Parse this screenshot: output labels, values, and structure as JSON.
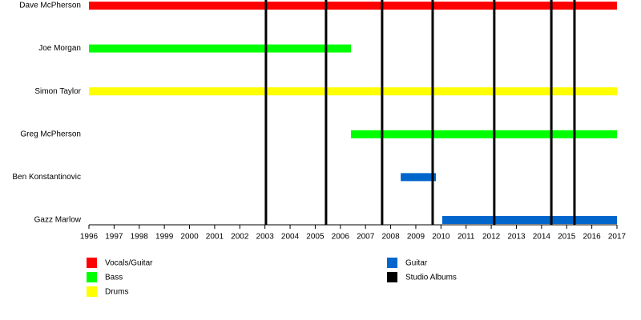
{
  "chart_data": {
    "type": "timeline",
    "xlim": [
      1996,
      2017
    ],
    "xticks": [
      1996,
      1997,
      1998,
      1999,
      2000,
      2001,
      2002,
      2003,
      2004,
      2005,
      2006,
      2007,
      2008,
      2009,
      2010,
      2011,
      2012,
      2013,
      2014,
      2015,
      2016,
      2017
    ],
    "roles": [
      {
        "name": "Vocals/Guitar",
        "color": "#ff0000"
      },
      {
        "name": "Bass",
        "color": "#00ff00"
      },
      {
        "name": "Drums",
        "color": "#ffff00"
      },
      {
        "name": "Guitar",
        "color": "#0066cc"
      }
    ],
    "members": [
      {
        "name": "Dave McPherson",
        "periods": [
          {
            "role": "Vocals/Guitar",
            "start": 1996,
            "end": 2017
          }
        ]
      },
      {
        "name": "Joe Morgan",
        "periods": [
          {
            "role": "Bass",
            "start": 1996,
            "end": 2006.42
          }
        ]
      },
      {
        "name": "Simon Taylor",
        "periods": [
          {
            "role": "Drums",
            "start": 1996,
            "end": 2017
          }
        ]
      },
      {
        "name": "Greg McPherson",
        "periods": [
          {
            "role": "Bass",
            "start": 2006.42,
            "end": 2017
          }
        ]
      },
      {
        "name": "Ben Konstantinovic",
        "periods": [
          {
            "role": "Guitar",
            "start": 2008.4,
            "end": 2009.8
          }
        ]
      },
      {
        "name": "Gazz Marlow",
        "periods": [
          {
            "role": "Guitar",
            "start": 2010.05,
            "end": 2017
          }
        ]
      }
    ],
    "albums": {
      "name": "Studio Albums",
      "color": "#000000",
      "values": [
        2003.04,
        2005.43,
        2007.66,
        2009.67,
        2012.12,
        2014.39,
        2015.31
      ]
    }
  }
}
